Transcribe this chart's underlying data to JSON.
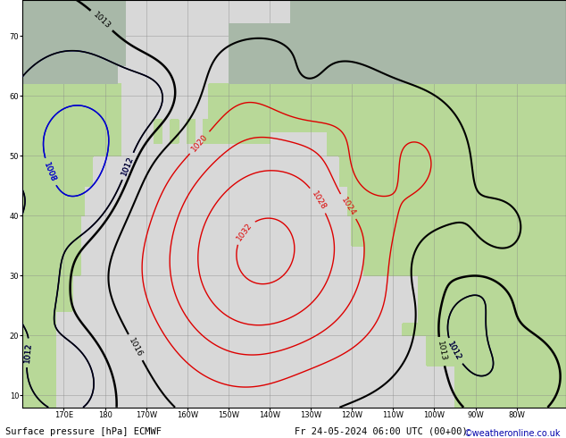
{
  "watermark": "©weatheronline.co.uk",
  "bg_ocean": "#d8d8d8",
  "bg_land_green": "#b8d898",
  "bg_land_gray": "#a8b8a8",
  "grid_color": "#888888",
  "contour_red": "#dd0000",
  "contour_blue": "#0000cc",
  "contour_black": "#000000",
  "label_fontsize": 6.5,
  "title_fontsize": 7.5,
  "figsize": [
    6.34,
    4.9
  ],
  "dpi": 100,
  "xlim": [
    160,
    292
  ],
  "ylim": [
    8,
    76
  ],
  "xticks": [
    170,
    180,
    190,
    200,
    210,
    220,
    230,
    240,
    250,
    260,
    270,
    280
  ],
  "xtick_labels": [
    "170E",
    "180",
    "170W",
    "160W",
    "150W",
    "140W",
    "130W",
    "120W",
    "110W",
    "100W",
    "90W",
    "80W"
  ],
  "yticks": [
    10,
    20,
    30,
    40,
    50,
    60,
    70
  ],
  "bottom_label_left": "Surface pressure [hPa] ECMWF",
  "bottom_label_right": "Fr 24-05-2024 06:00 UTC (00+00)"
}
